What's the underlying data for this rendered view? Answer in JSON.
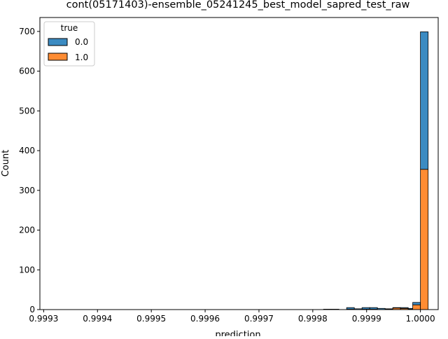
{
  "chart_data": {
    "type": "bar",
    "title": "cont(05171403)-ensemble_05241245_best_model_sapred_test_raw",
    "xlabel": "prediction",
    "ylabel": "Count",
    "xlim": [
      0.999293,
      1.000033
    ],
    "ylim": [
      0,
      735
    ],
    "x_ticks": [
      {
        "value": 0.9993,
        "label": "0.9993"
      },
      {
        "value": 0.9994,
        "label": "0.9994"
      },
      {
        "value": 0.9995,
        "label": "0.9995"
      },
      {
        "value": 0.9996,
        "label": "0.9996"
      },
      {
        "value": 0.9997,
        "label": "0.9997"
      },
      {
        "value": 0.9998,
        "label": "0.9998"
      },
      {
        "value": 0.9999,
        "label": "0.9999"
      },
      {
        "value": 1.0,
        "label": "1.0000"
      }
    ],
    "y_ticks": [
      {
        "value": 0,
        "label": "0"
      },
      {
        "value": 100,
        "label": "100"
      },
      {
        "value": 200,
        "label": "200"
      },
      {
        "value": 300,
        "label": "300"
      },
      {
        "value": 400,
        "label": "400"
      },
      {
        "value": 500,
        "label": "500"
      },
      {
        "value": 600,
        "label": "600"
      },
      {
        "value": 700,
        "label": "700"
      }
    ],
    "grid": false,
    "legend": {
      "title": "true",
      "placement": "top-left",
      "entries": [
        {
          "label": "0.0",
          "color": "#3b8bc2"
        },
        {
          "label": "1.0",
          "color": "#ff8c33"
        }
      ]
    },
    "bin_width": 1.43e-05,
    "bins": [
      {
        "x0": 0.99982,
        "c0": 1,
        "c1": 0
      },
      {
        "x0": 0.9998343,
        "c0": 1,
        "c1": 0
      },
      {
        "x0": 0.9998629,
        "c0": 4,
        "c1": 1
      },
      {
        "x0": 0.9998772,
        "c0": 2,
        "c1": 0
      },
      {
        "x0": 0.9998915,
        "c0": 4,
        "c1": 1
      },
      {
        "x0": 0.9999058,
        "c0": 4,
        "c1": 1
      },
      {
        "x0": 0.9999201,
        "c0": 3,
        "c1": 0
      },
      {
        "x0": 0.9999344,
        "c0": 1,
        "c1": 1
      },
      {
        "x0": 0.9999487,
        "c0": 1,
        "c1": 4
      },
      {
        "x0": 0.999963,
        "c0": 2,
        "c1": 3
      },
      {
        "x0": 0.9999773,
        "c0": 2,
        "c1": 1
      },
      {
        "x0": 0.9999857,
        "c0": 6,
        "c1": 12
      },
      {
        "x0": 1.0,
        "c0": 346,
        "c1": 353
      }
    ],
    "colors": {
      "series0": "#3b8bc2",
      "series1": "#ff8c33",
      "edge": "#000000"
    }
  }
}
